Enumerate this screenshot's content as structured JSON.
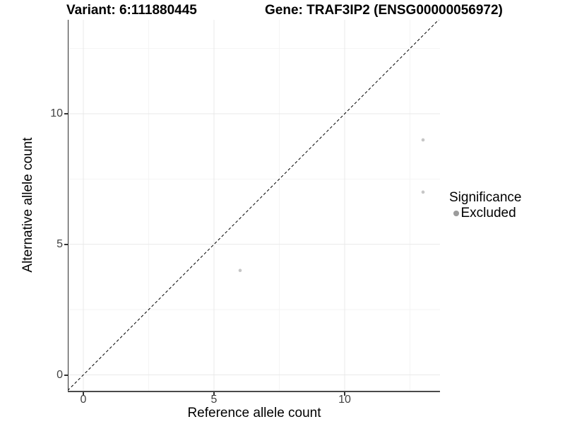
{
  "header": {
    "variant_title": "Variant: 6:111880445",
    "gene_title": "Gene: TRAF3IP2 (ENSG00000056972)"
  },
  "x_axis": {
    "title": "Reference allele count",
    "tick_labels": [
      "0",
      "5",
      "10"
    ]
  },
  "y_axis": {
    "title": "Alternative allele count",
    "tick_labels": [
      "0",
      "5",
      "10"
    ]
  },
  "legend": {
    "title": "Significance",
    "items": [
      {
        "label": "Excluded",
        "key_color": "#9c9c9c"
      }
    ]
  },
  "colors": {
    "axis_line": "#2e2e2e",
    "tick_text": "#424242",
    "grid_major": "#e9e9e9",
    "grid_minor": "#f4f4f4",
    "point": "#c6c6c6",
    "reference_line": "#000000"
  },
  "chart_data": {
    "type": "scatter",
    "title": "Variant: 6:111880445 — Gene: TRAF3IP2 (ENSG00000056972)",
    "xlabel": "Reference allele count",
    "ylabel": "Alternative allele count",
    "xlim": [
      -0.7,
      13.7
    ],
    "ylim": [
      -0.7,
      13.6
    ],
    "x_major_breaks": [
      0,
      5,
      10
    ],
    "x_minor_breaks": [
      2.5,
      7.5,
      12.5
    ],
    "y_major_breaks": [
      0,
      5,
      10
    ],
    "y_minor_breaks": [
      2.5,
      7.5,
      12.5
    ],
    "grid": "major+minor",
    "legend_position": "right",
    "series": [
      {
        "name": "Excluded",
        "color": "#c6c6c6",
        "point_radius": 2.3,
        "points": [
          [
            6,
            4
          ],
          [
            13,
            9
          ],
          [
            13,
            7
          ]
        ]
      }
    ],
    "reference_line": {
      "type": "identity",
      "slope": 1,
      "intercept": 0,
      "style": "dashed",
      "color": "#000000"
    }
  }
}
